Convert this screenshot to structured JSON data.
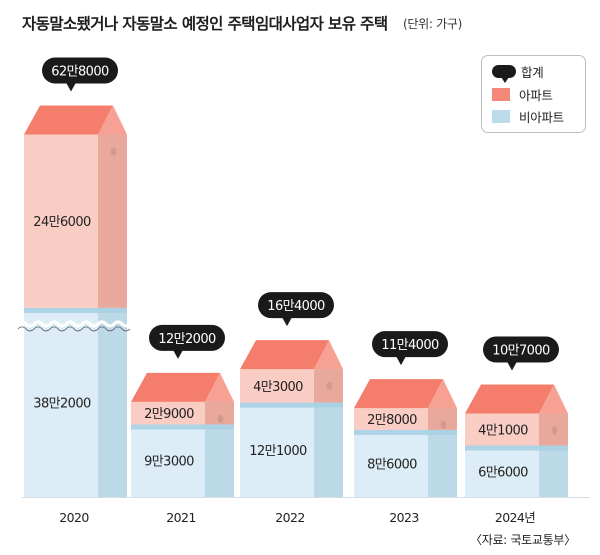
{
  "title": "자동말소됐거나 자동말소 예정인 주택임대사업자 보유 주택",
  "unit": "(단위: 가구)",
  "source": "〈자료: 국토교통부〉",
  "legend": [
    {
      "label": "합계",
      "key": "total"
    },
    {
      "label": "아파트",
      "key": "apt"
    },
    {
      "label": "비아파트",
      "key": "nonapt"
    }
  ],
  "colors": {
    "apt_front": "#f9cdc3",
    "apt_side": "#e8a89b",
    "roof_front": "#f47d6b",
    "roof_side": "#f6a193",
    "nonapt_front": "#dcedf7",
    "nonapt_side": "#bcd9e8",
    "separator": "#a8cfe4",
    "bubble": "#1a1a1a"
  },
  "chart_data": {
    "type": "bar",
    "stacked": true,
    "axis_break": true,
    "categories": [
      "2020",
      "2021",
      "2022",
      "2023",
      "2024년"
    ],
    "series": [
      {
        "name": "비아파트",
        "values": [
          382000,
          93000,
          121000,
          86000,
          66000
        ],
        "labels": [
          "38만2000",
          "9만3000",
          "12만1000",
          "8만6000",
          "6만6000"
        ]
      },
      {
        "name": "아파트",
        "values": [
          246000,
          29000,
          43000,
          28000,
          41000
        ],
        "labels": [
          "24만6000",
          "2만9000",
          "4만3000",
          "2만8000",
          "4만1000"
        ]
      }
    ],
    "totals": {
      "name": "합계",
      "values": [
        628000,
        122000,
        164000,
        114000,
        107000
      ],
      "labels": [
        "62만8000",
        "12만2000",
        "16만4000",
        "11만4000",
        "10만7000"
      ]
    },
    "legend_position": "top-right",
    "grid": false
  }
}
